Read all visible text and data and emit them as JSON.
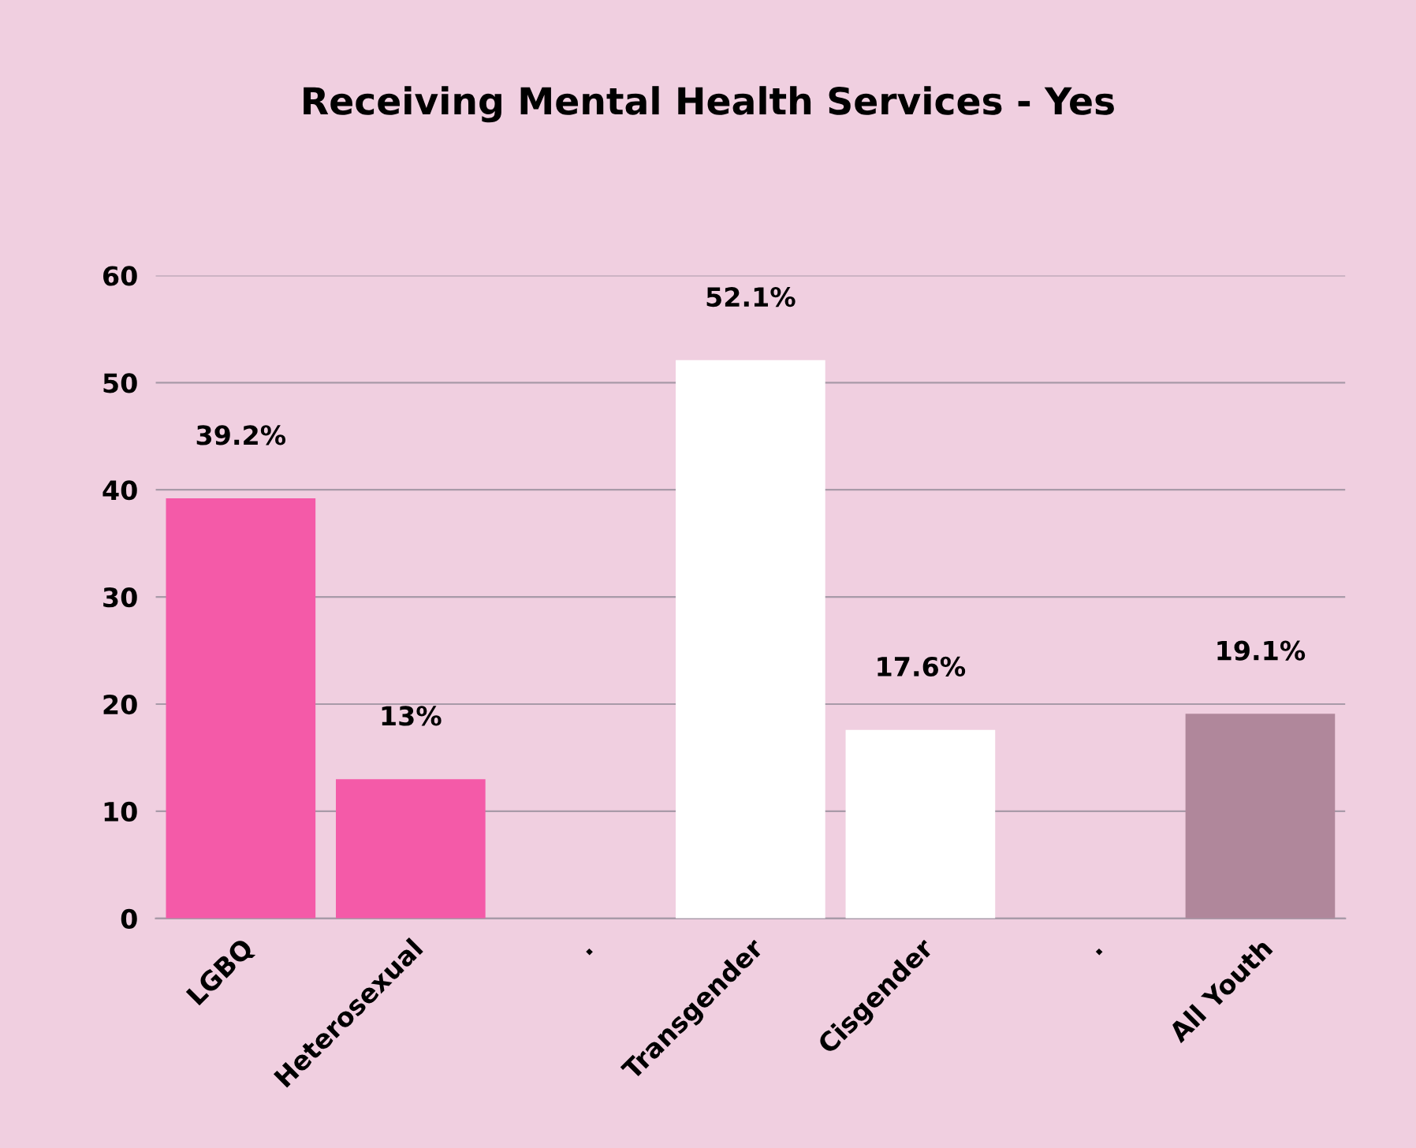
{
  "chart_data": {
    "type": "bar",
    "title": "Receiving Mental Health Services - Yes",
    "categories": [
      "LGBQ",
      "Heterosexual",
      ".",
      "Transgender",
      "Cisgender",
      ".",
      "All Youth"
    ],
    "values": [
      39.2,
      13,
      null,
      52.1,
      17.6,
      null,
      19.1
    ],
    "colors": [
      "#f45aa8",
      "#f45aa8",
      "#ffffff",
      "#ffffff",
      "#ffffff",
      "#ffffff",
      "#b0879b"
    ],
    "value_labels": [
      "39.2%",
      "13%",
      null,
      "52.1%",
      "17.6%",
      null,
      "19.1%"
    ],
    "ylim": [
      0,
      60
    ],
    "yticks": [
      0,
      10,
      20,
      30,
      40,
      50,
      60
    ],
    "grid": "y"
  }
}
